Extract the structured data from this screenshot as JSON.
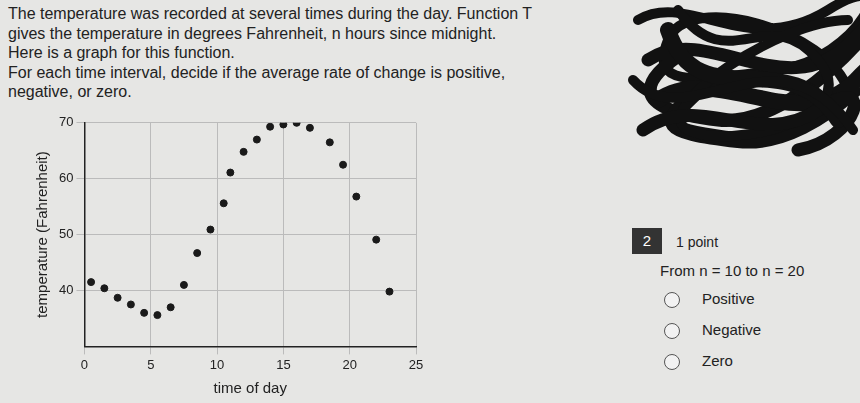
{
  "question": {
    "lines": [
      "The temperature was recorded at several times during the day. Function T",
      "gives the temperature in degrees Fahrenheit, n hours since midnight.",
      "Here is a graph for this function.",
      "For each time interval, decide if the average rate of change is positive,",
      "negative, or zero."
    ],
    "number": "2",
    "points": "1 point",
    "prompt": "From n = 10 to n = 20",
    "options": [
      "Positive",
      "Negative",
      "Zero"
    ]
  },
  "chart_data": {
    "type": "scatter",
    "x_label": "time of day",
    "y_label": "temperature (Fahrenheit)",
    "x": [
      0.5,
      1.5,
      2.5,
      3.5,
      4.5,
      5.5,
      6.5,
      7.5,
      8.5,
      9.5,
      10.5,
      11,
      12,
      13,
      14,
      15,
      16,
      17,
      18.5,
      19.5,
      20.5,
      22,
      23
    ],
    "values": [
      41.5,
      40.4,
      38.7,
      37.5,
      36,
      35.6,
      37,
      41,
      46.7,
      50.9,
      55.6,
      61.1,
      64.8,
      67,
      69.3,
      69.7,
      70,
      69.1,
      66.5,
      62.5,
      56.8,
      49.1,
      39.8
    ],
    "color": "#1a1a1a",
    "marker": "circle",
    "xlim": [
      0,
      25
    ],
    "xticks": [
      0,
      5,
      10,
      15,
      20,
      25
    ],
    "ylim": [
      30,
      70
    ],
    "yticks": [
      40,
      50,
      60,
      70
    ],
    "grid": true
  }
}
